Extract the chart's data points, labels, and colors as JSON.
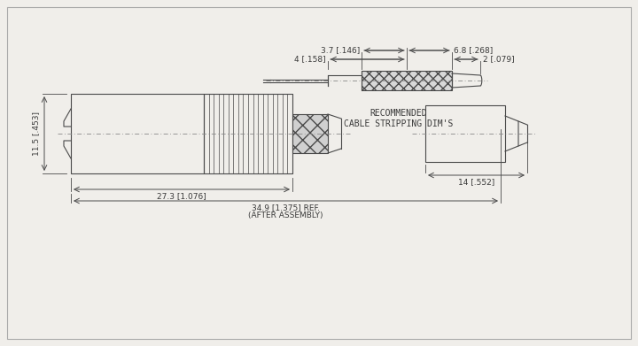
{
  "bg_color": "#f0eeea",
  "line_color": "#4a4a4a",
  "dim_color": "#4a4a4a",
  "text_color": "#3a3a3a",
  "title": "RECOMMENDED\nCABLE STRIPPING DIM'S",
  "dim_3_7": "3.7 [.146]",
  "dim_4": "4 [.158]",
  "dim_6_8": "6.8 [.268]",
  "dim_2": "2 [.079]",
  "dim_11_5": "11.5 [.453]",
  "dim_27_3": "27.3 [1.076]",
  "dim_34_9": "34.9 [1.375] REF.",
  "dim_after_assembly": "(AFTER ASSEMBLY)",
  "dim_14": "14 [.552]"
}
